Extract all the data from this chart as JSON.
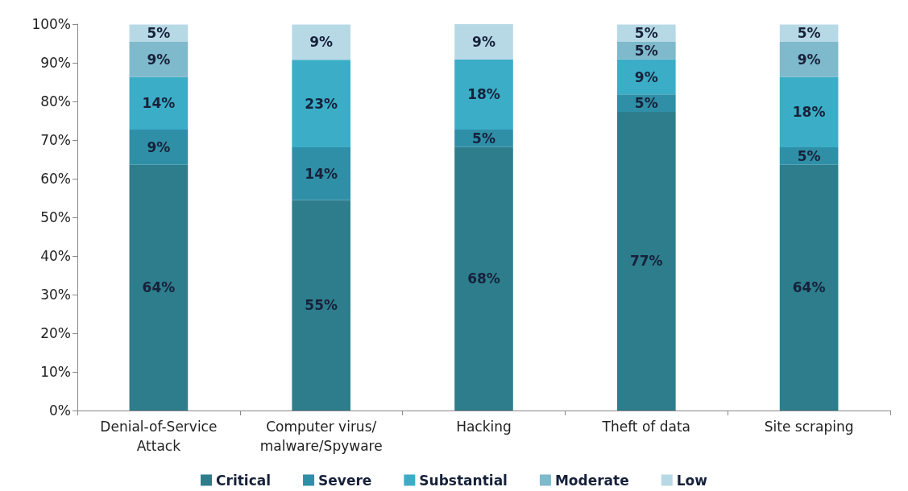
{
  "chart_data": {
    "type": "bar",
    "stacked": true,
    "categories": [
      "Denial-of-Service\nAttack",
      "Computer virus/\nmalware/Spyware",
      "Hacking",
      "Theft of data",
      "Site scraping"
    ],
    "series": [
      {
        "name": "Critical",
        "color": "#2e7d8c",
        "values": [
          63.6,
          54.5,
          68.2,
          77.3,
          63.6
        ],
        "value_labels": [
          "64%",
          "55%",
          "68%",
          "77%",
          "64%"
        ]
      },
      {
        "name": "Severe",
        "color": "#2f8fa6",
        "values": [
          9.1,
          13.6,
          4.5,
          4.5,
          4.5
        ],
        "value_labels": [
          "9%",
          "14%",
          "5%",
          "5%",
          "5%"
        ]
      },
      {
        "name": "Substantial",
        "color": "#3badc7",
        "values": [
          13.6,
          22.7,
          18.2,
          9.1,
          18.2
        ],
        "value_labels": [
          "14%",
          "23%",
          "18%",
          "9%",
          "18%"
        ]
      },
      {
        "name": "Moderate",
        "color": "#7fb9cc",
        "values": [
          9.1,
          null,
          null,
          4.5,
          9.1
        ],
        "value_labels": [
          "9%",
          null,
          null,
          "5%",
          "9%"
        ]
      },
      {
        "name": "Low",
        "color": "#b7d9e6",
        "values": [
          4.5,
          9.1,
          9.1,
          4.5,
          4.5
        ],
        "value_labels": [
          "5%",
          "9%",
          "9%",
          "5%",
          "5%"
        ]
      }
    ],
    "ylim": [
      0,
      100
    ],
    "yticks": [
      {
        "value": 0,
        "label": "0%"
      },
      {
        "value": 10,
        "label": "10%"
      },
      {
        "value": 20,
        "label": "20%"
      },
      {
        "value": 30,
        "label": "30%"
      },
      {
        "value": 40,
        "label": "40%"
      },
      {
        "value": 50,
        "label": "50%"
      },
      {
        "value": 60,
        "label": "60%"
      },
      {
        "value": 70,
        "label": "70%"
      },
      {
        "value": 80,
        "label": "80%"
      },
      {
        "value": 90,
        "label": "90%"
      },
      {
        "value": 100,
        "label": "100%"
      }
    ],
    "grid": false,
    "legend": "bottom"
  }
}
